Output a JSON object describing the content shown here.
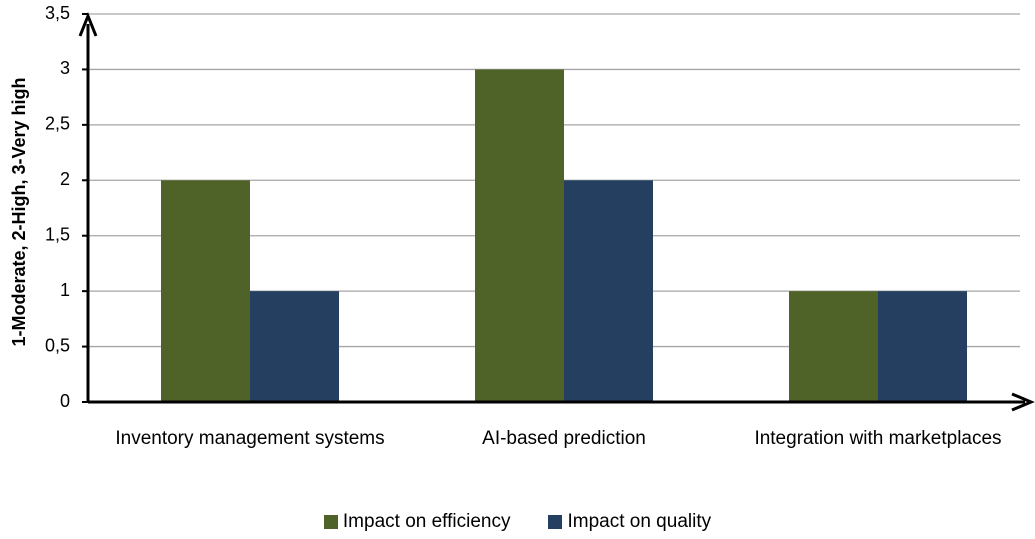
{
  "chart_data": {
    "type": "bar",
    "y_label": "1-Moderate, 2-High, 3-Very high",
    "categories": [
      "Inventory management systems",
      "AI-based prediction",
      "Integration with marketplaces"
    ],
    "series": [
      {
        "name": "Impact on efficiency",
        "color": "#4f6228",
        "values": [
          2,
          3,
          1
        ]
      },
      {
        "name": "Impact on quality",
        "color": "#243f60",
        "values": [
          1,
          2,
          1
        ]
      }
    ],
    "ylim": [
      0,
      3.5
    ],
    "yticks": [
      0,
      {
        "value": 0.5,
        "label": "0,5"
      },
      1,
      {
        "value": 1.5,
        "label": "1,5"
      },
      2,
      {
        "value": 2.5,
        "label": "2,5"
      },
      3,
      {
        "value": 3.5,
        "label": "3,5"
      }
    ],
    "grid": true,
    "legend": "bottom"
  }
}
